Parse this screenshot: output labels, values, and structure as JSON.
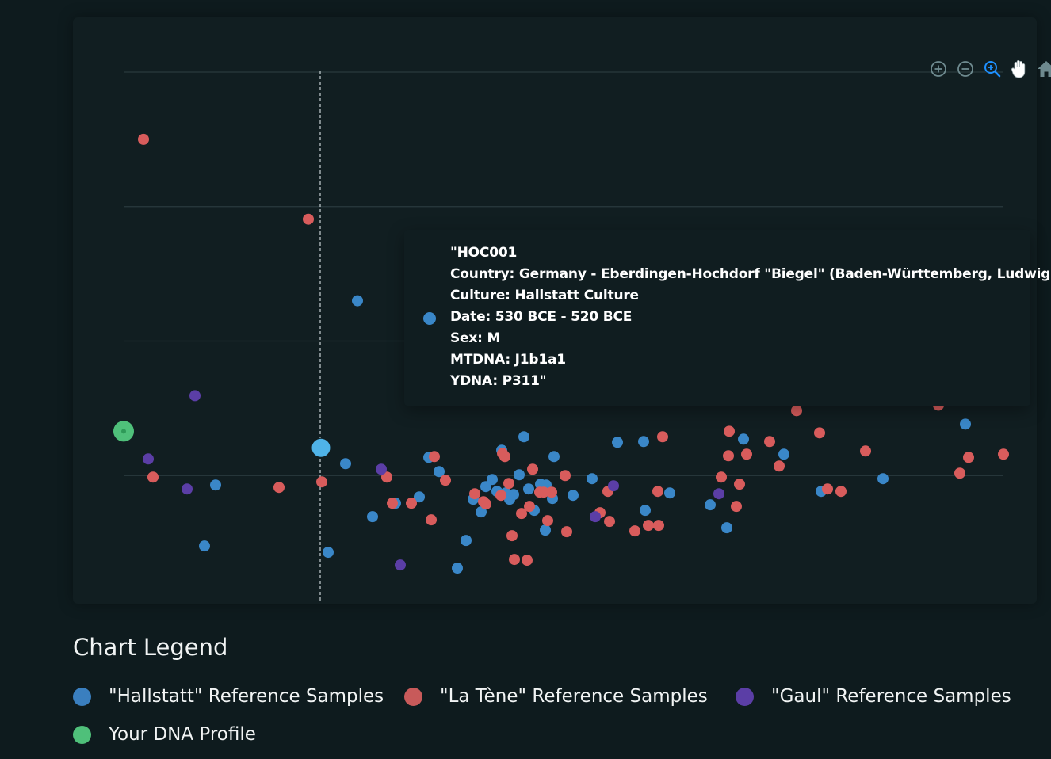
{
  "toolbar": {
    "icons": [
      "zoom-in-icon",
      "zoom-out-icon",
      "selection-zoom-icon",
      "pan-icon",
      "home-icon",
      "menu-icon"
    ],
    "active_color": "#1e90ff",
    "icon_color": "#6e8a8f"
  },
  "tooltip": {
    "marker_color": "#3a87c8",
    "lines": [
      "\"HOC001",
      "Country: Germany - Eberdingen-Hochdorf \"Biegel\" (Baden-Württemberg, Ludwigsburg)",
      "Culture: Hallstatt Culture",
      "Date: 530 BCE - 520 BCE",
      "Sex: M",
      "MTDNA: J1b1a1",
      "YDNA: P311\""
    ]
  },
  "legend": {
    "title": "Chart Legend",
    "items": [
      {
        "label": "\"Hallstatt\" Reference Samples",
        "color": "#3a7fbf"
      },
      {
        "label": "\"La Tène\" Reference Samples",
        "color": "#c85a5a"
      },
      {
        "label": "\"Gaul\" Reference Samples",
        "color": "#5b3ea6"
      },
      {
        "label": "Your DNA Profile",
        "color": "#4fc07a"
      }
    ]
  },
  "chart_data": {
    "type": "scatter",
    "title": "",
    "xlabel": "",
    "ylabel": "",
    "xlim": [
      0,
      1110
    ],
    "ylim": [
      -160,
      512
    ],
    "grid": true,
    "gridlines_y": [
      0,
      170,
      340,
      510
    ],
    "crosshair_x": 248,
    "highlighted_point": {
      "series": "\"Hallstatt\" Reference Samples",
      "x": 249,
      "y": 35,
      "color": "#4fb3e8"
    },
    "series": [
      {
        "name": "\"Hallstatt\" Reference Samples",
        "color": "#3a87c8",
        "points": [
          [
            295,
            221
          ],
          [
            280,
            15
          ],
          [
            258,
            -97
          ],
          [
            116,
            -12
          ],
          [
            102,
            -89
          ],
          [
            314,
            -52
          ],
          [
            343,
            -35
          ],
          [
            373,
            -27
          ],
          [
            385,
            23
          ],
          [
            398,
            5
          ],
          [
            421,
            -117
          ],
          [
            432,
            -82
          ],
          [
            441,
            -30
          ],
          [
            451,
            -46
          ],
          [
            457,
            -14
          ],
          [
            465,
            -5
          ],
          [
            471,
            -20
          ],
          [
            477,
            32
          ],
          [
            482,
            -22
          ],
          [
            487,
            -30
          ],
          [
            492,
            -24
          ],
          [
            499,
            1
          ],
          [
            505,
            49
          ],
          [
            511,
            -17
          ],
          [
            518,
            -44
          ],
          [
            526,
            -11
          ],
          [
            533,
            -12
          ],
          [
            541,
            -29
          ],
          [
            532,
            -69
          ],
          [
            543,
            24
          ],
          [
            567,
            -25
          ],
          [
            591,
            -4
          ],
          [
            623,
            42
          ],
          [
            656,
            43
          ],
          [
            658,
            -44
          ],
          [
            689,
            -22
          ],
          [
            740,
            -37
          ],
          [
            761,
            -66
          ],
          [
            782,
            46
          ],
          [
            833,
            27
          ],
          [
            880,
            -20
          ],
          [
            958,
            -4
          ],
          [
            1062,
            65
          ]
        ]
      },
      {
        "name": "\"La Tène\" Reference Samples",
        "color": "#d85c5c",
        "points": [
          [
            25,
            425
          ],
          [
            233,
            324
          ],
          [
            37,
            -2
          ],
          [
            196,
            -15
          ],
          [
            250,
            -8
          ],
          [
            332,
            -2
          ],
          [
            339,
            -35
          ],
          [
            363,
            -35
          ],
          [
            388,
            -56
          ],
          [
            392,
            24
          ],
          [
            406,
            -6
          ],
          [
            443,
            -23
          ],
          [
            454,
            -33
          ],
          [
            457,
            -36
          ],
          [
            476,
            -25
          ],
          [
            478,
            28
          ],
          [
            481,
            24
          ],
          [
            486,
            -10
          ],
          [
            490,
            -76
          ],
          [
            493,
            -106
          ],
          [
            502,
            -48
          ],
          [
            509,
            -107
          ],
          [
            512,
            -39
          ],
          [
            516,
            8
          ],
          [
            525,
            -21
          ],
          [
            530,
            -21
          ],
          [
            535,
            -57
          ],
          [
            540,
            -21
          ],
          [
            557,
            0
          ],
          [
            559,
            -71
          ],
          [
            601,
            -47
          ],
          [
            611,
            -20
          ],
          [
            613,
            -58
          ],
          [
            645,
            -70
          ],
          [
            662,
            -63
          ],
          [
            675,
            -63
          ],
          [
            674,
            -20
          ],
          [
            680,
            49
          ],
          [
            754,
            -2
          ],
          [
            763,
            25
          ],
          [
            764,
            56
          ],
          [
            773,
            -39
          ],
          [
            777,
            -11
          ],
          [
            786,
            27
          ],
          [
            815,
            43
          ],
          [
            827,
            12
          ],
          [
            849,
            82
          ],
          [
            878,
            54
          ],
          [
            888,
            -17
          ],
          [
            905,
            -20
          ],
          [
            930,
            95
          ],
          [
            936,
            31
          ],
          [
            968,
            95
          ],
          [
            1028,
            89
          ],
          [
            1055,
            3
          ],
          [
            1066,
            23
          ],
          [
            1110,
            27
          ]
        ]
      },
      {
        "name": "\"Gaul\" Reference Samples",
        "color": "#5b3ea6",
        "points": [
          [
            90,
            101
          ],
          [
            31,
            21
          ],
          [
            80,
            -17
          ],
          [
            325,
            8
          ],
          [
            349,
            -113
          ],
          [
            595,
            -52
          ],
          [
            618,
            -13
          ],
          [
            655,
            98
          ],
          [
            751,
            -23
          ]
        ]
      },
      {
        "name": "Your DNA Profile",
        "color": "#4fc07a",
        "points": [
          [
            0,
            56
          ]
        ]
      }
    ]
  }
}
